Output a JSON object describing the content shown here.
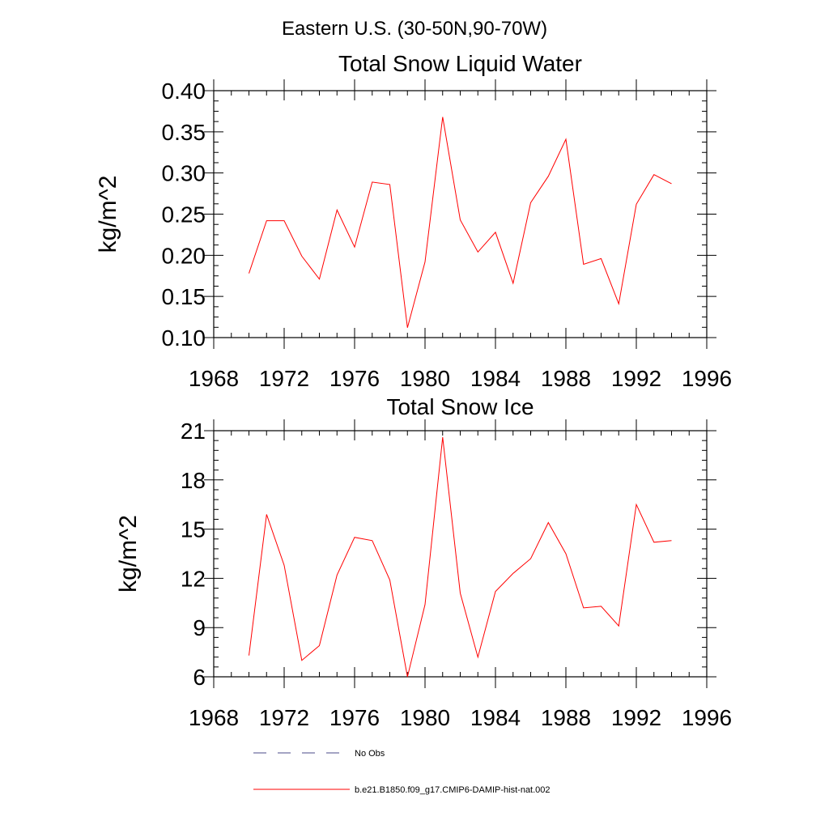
{
  "figure": {
    "suptitle": "Eastern U.S. (30-50N,90-70W)"
  },
  "chart_data": [
    {
      "type": "line",
      "title": "Total Snow Liquid Water",
      "xlabel": "",
      "ylabel": "kg/m^2",
      "xlim": [
        1968,
        1996
      ],
      "ylim": [
        0.1,
        0.4
      ],
      "xticks": [
        1968,
        1972,
        1976,
        1980,
        1984,
        1988,
        1992,
        1996
      ],
      "yticks": [
        "0.10",
        "0.15",
        "0.20",
        "0.25",
        "0.30",
        "0.35",
        "0.40"
      ],
      "grid": false,
      "x": [
        1970,
        1971,
        1972,
        1973,
        1974,
        1975,
        1976,
        1977,
        1978,
        1979,
        1980,
        1981,
        1982,
        1983,
        1984,
        1985,
        1986,
        1987,
        1988,
        1989,
        1990,
        1991,
        1992,
        1993,
        1994
      ],
      "series": [
        {
          "name": "b.e21.B1850.f09_g17.CMIP6-DAMIP-hist-nat.002",
          "color": "#ff0000",
          "values": [
            0.178,
            0.242,
            0.242,
            0.199,
            0.171,
            0.255,
            0.21,
            0.289,
            0.286,
            0.112,
            0.192,
            0.368,
            0.243,
            0.204,
            0.228,
            0.166,
            0.264,
            0.296,
            0.341,
            0.189,
            0.196,
            0.141,
            0.262,
            0.298,
            0.287
          ]
        }
      ]
    },
    {
      "type": "line",
      "title": "Total Snow Ice",
      "xlabel": "",
      "ylabel": "kg/m^2",
      "xlim": [
        1968,
        1996
      ],
      "ylim": [
        6,
        21
      ],
      "xticks": [
        1968,
        1972,
        1976,
        1980,
        1984,
        1988,
        1992,
        1996
      ],
      "yticks": [
        "6",
        "9",
        "12",
        "15",
        "18",
        "21"
      ],
      "grid": false,
      "x": [
        1970,
        1971,
        1972,
        1973,
        1974,
        1975,
        1976,
        1977,
        1978,
        1979,
        1980,
        1981,
        1982,
        1983,
        1984,
        1985,
        1986,
        1987,
        1988,
        1989,
        1990,
        1991,
        1992,
        1993,
        1994
      ],
      "series": [
        {
          "name": "b.e21.B1850.f09_g17.CMIP6-DAMIP-hist-nat.002",
          "color": "#ff0000",
          "values": [
            7.3,
            15.9,
            12.8,
            7.0,
            7.9,
            12.2,
            14.5,
            14.3,
            11.9,
            6.0,
            10.4,
            20.6,
            11.1,
            7.2,
            11.2,
            12.3,
            13.2,
            15.4,
            13.5,
            10.2,
            10.3,
            9.1,
            16.5,
            14.2,
            14.3
          ]
        }
      ]
    }
  ],
  "legend": {
    "placement": "bottom",
    "items": [
      {
        "label": "No Obs",
        "color": "#4a4a8a",
        "dash": "dashed"
      },
      {
        "label": "b.e21.B1850.f09_g17.CMIP6-DAMIP-hist-nat.002",
        "color": "#ff0000",
        "dash": "solid"
      }
    ]
  }
}
